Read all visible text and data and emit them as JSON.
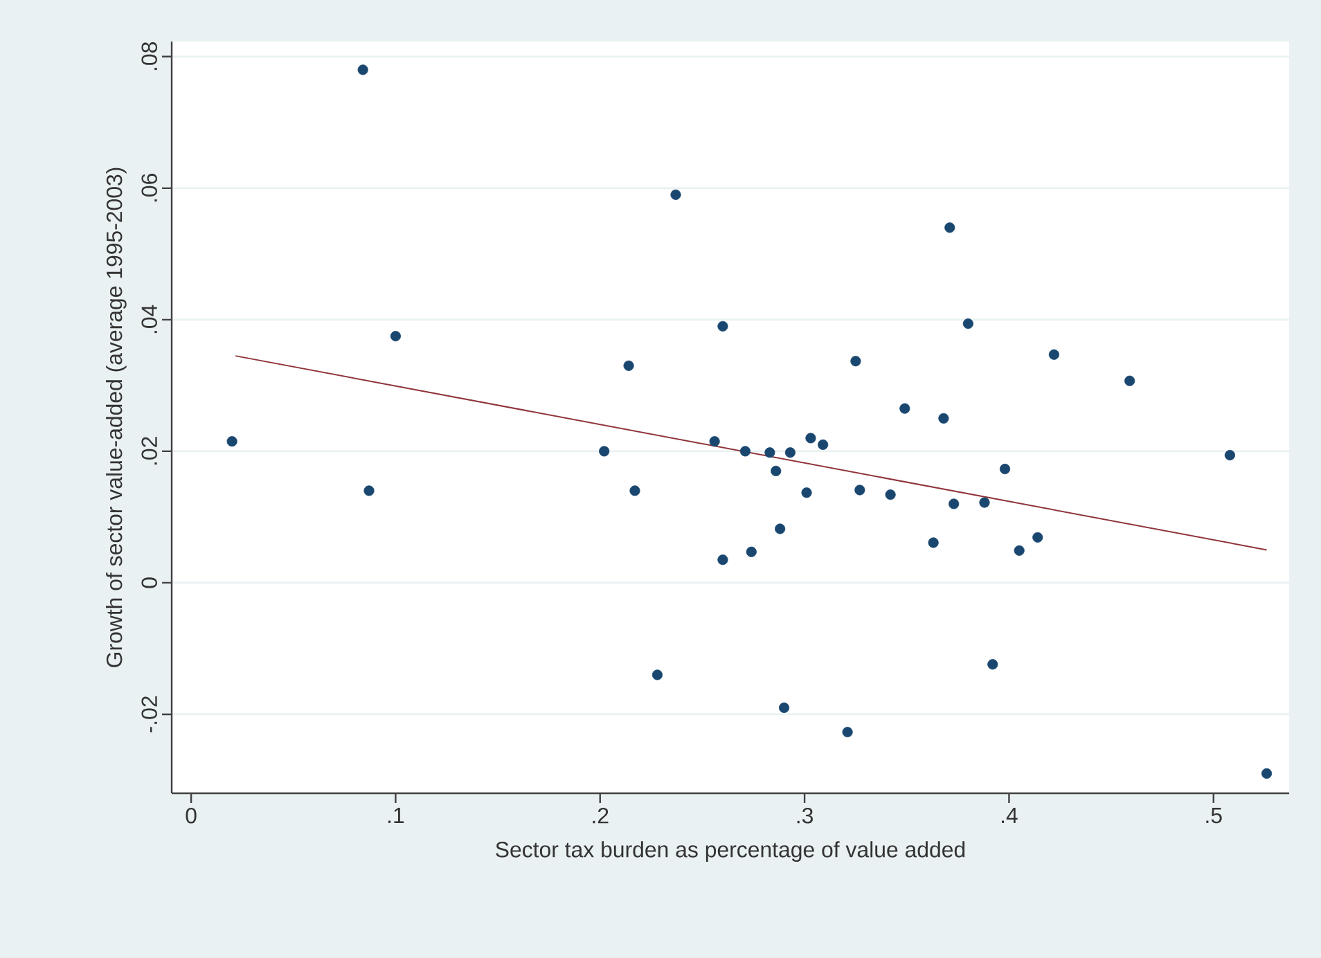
{
  "chart_data": {
    "type": "scatter",
    "xlabel": "Sector tax burden as percentage of value added",
    "ylabel": "Growth of sector value-added (average 1995-2003)",
    "xlim": [
      -0.0095,
      0.537
    ],
    "ylim": [
      -0.032,
      0.0823
    ],
    "xticks": [
      0,
      {
        "value": 0.1,
        "label": ".1"
      },
      {
        "value": 0.2,
        "label": ".2"
      },
      {
        "value": 0.3,
        "label": ".3"
      },
      {
        "value": 0.4,
        "label": ".4"
      },
      {
        "value": 0.5,
        "label": ".5"
      }
    ],
    "yticks": [
      {
        "value": -0.02,
        "label": "-.02"
      },
      0,
      {
        "value": 0.02,
        "label": ".02"
      },
      {
        "value": 0.04,
        "label": ".04"
      },
      {
        "value": 0.06,
        "label": ".06"
      },
      {
        "value": 0.08,
        "label": ".08"
      }
    ],
    "grid": "y",
    "series": [
      {
        "marker": "circle",
        "color": "#1a476f",
        "x": [
          0.02,
          0.084,
          0.1,
          0.087,
          0.202,
          0.214,
          0.217,
          0.237,
          0.228,
          0.256,
          0.26,
          0.26,
          0.271,
          0.283,
          0.286,
          0.293,
          0.303,
          0.309,
          0.325,
          0.349,
          0.368,
          0.371,
          0.38,
          0.398,
          0.422,
          0.459,
          0.508,
          0.301,
          0.327,
          0.342,
          0.373,
          0.388,
          0.363,
          0.405,
          0.414,
          0.274,
          0.288,
          0.29,
          0.321,
          0.392,
          0.526
        ],
        "values": [
          0.0215,
          0.078,
          0.0375,
          0.014,
          0.02,
          0.033,
          0.014,
          0.059,
          -0.014,
          0.0215,
          0.039,
          0.0035,
          0.02,
          0.0198,
          0.017,
          0.0198,
          0.022,
          0.021,
          0.0337,
          0.0265,
          0.025,
          0.054,
          0.0394,
          0.0173,
          0.0347,
          0.0307,
          0.0194,
          0.0137,
          0.0141,
          0.0134,
          0.012,
          0.0122,
          0.0061,
          0.0049,
          0.0069,
          0.0047,
          0.0082,
          -0.019,
          -0.0227,
          -0.0124,
          -0.029
        ]
      },
      {
        "type": "line",
        "color": "#90353b",
        "x": [
          0.0217,
          0.526
        ],
        "values": [
          0.0345,
          0.005
        ]
      }
    ]
  }
}
